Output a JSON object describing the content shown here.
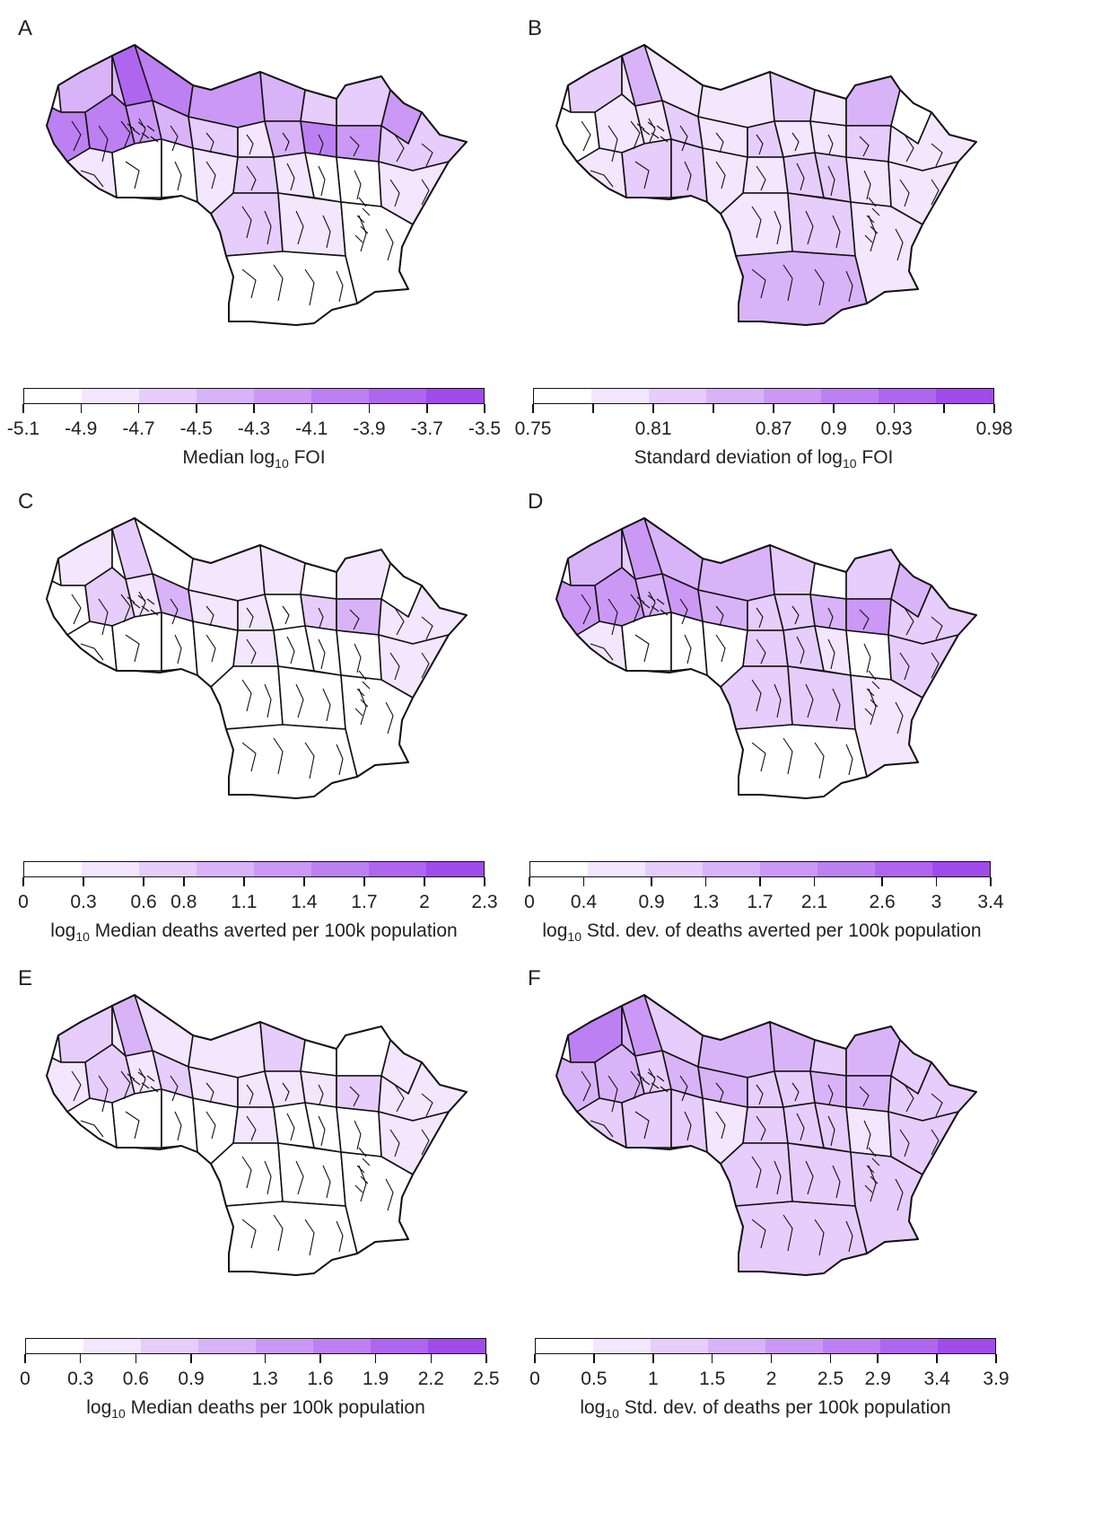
{
  "figure": {
    "palette": [
      "#ffffff",
      "#f3e6fd",
      "#e6cdfb",
      "#d9b3f8",
      "#cb99f5",
      "#bd80f2",
      "#af66ef",
      "#a04bec"
    ],
    "panels": [
      {
        "letter": "A",
        "legend": {
          "title_pre": "Median log",
          "title_sub": "10",
          "title_post": " FOI",
          "tick_labels": [
            "-5.1",
            "-4.9",
            "-4.7",
            "-4.5",
            "-4.3",
            "-4.1",
            "-3.9",
            "-3.7",
            "-3.5"
          ],
          "tick_values": [
            -5.1,
            -4.9,
            -4.7,
            -4.5,
            -4.3,
            -4.1,
            -3.9,
            -3.7,
            -3.5
          ],
          "bin_values": [
            -5.1,
            -4.9,
            -4.7,
            -4.5,
            -4.3,
            -4.1,
            -3.9,
            -3.7,
            -3.5
          ]
        },
        "region_levels": [
          3,
          3,
          6,
          5,
          4,
          3,
          2,
          2,
          4,
          5,
          5,
          4,
          3,
          2,
          1,
          3,
          5,
          4,
          2,
          1,
          0,
          0,
          1,
          2,
          1,
          0,
          0,
          1,
          2,
          1,
          0,
          0
        ]
      },
      {
        "letter": "B",
        "legend": {
          "title_pre": "Standard deviation of log",
          "title_sub": "10",
          "title_post": " FOI",
          "tick_labels": [
            "0.75",
            "0.81",
            "0.87",
            "0.9",
            "0.93",
            "0.98"
          ],
          "tick_values": [
            0.75,
            0.81,
            0.87,
            0.9,
            0.93,
            0.98
          ],
          "bin_values": [
            0.75,
            0.78,
            0.81,
            0.84,
            0.87,
            0.9,
            0.93,
            0.955,
            0.98
          ]
        },
        "region_levels": [
          2,
          1,
          3,
          1,
          1,
          2,
          1,
          3,
          0,
          0,
          1,
          1,
          2,
          1,
          2,
          1,
          1,
          2,
          1,
          1,
          2,
          2,
          1,
          1,
          2,
          2,
          1,
          1,
          1,
          2,
          1,
          3
        ]
      },
      {
        "letter": "C",
        "legend": {
          "title_pre": "log",
          "title_sub": "10",
          "title_post": " Median deaths averted per 100k population",
          "tick_labels": [
            "0",
            "0.3",
            "0.6",
            "0.8",
            "1.1",
            "1.4",
            "1.7",
            "2",
            "2.3"
          ],
          "tick_values": [
            0,
            0.3,
            0.6,
            0.8,
            1.1,
            1.4,
            1.7,
            2,
            2.3
          ],
          "bin_values": [
            0,
            0.3,
            0.6,
            0.8,
            1.1,
            1.4,
            1.7,
            2,
            2.3
          ]
        },
        "region_levels": [
          1,
          0,
          2,
          0,
          1,
          1,
          0,
          1,
          0,
          0,
          2,
          1,
          3,
          1,
          1,
          0,
          2,
          3,
          1,
          0,
          0,
          0,
          0,
          1,
          0,
          0,
          0,
          1,
          0,
          0,
          0,
          0
        ]
      },
      {
        "letter": "D",
        "legend": {
          "title_pre": "log",
          "title_sub": "10",
          "title_post": " Std. dev. of deaths averted per 100k population",
          "tick_labels": [
            "0",
            "0.4",
            "0.9",
            "1.3",
            "1.7",
            "2.1",
            "2.6",
            "3",
            "3.4"
          ],
          "tick_values": [
            0,
            0.4,
            0.9,
            1.3,
            1.7,
            2.1,
            2.6,
            3,
            3.4
          ],
          "bin_values": [
            0,
            0.4,
            0.9,
            1.3,
            1.7,
            2.1,
            2.6,
            3,
            3.4
          ]
        },
        "region_levels": [
          3,
          2,
          4,
          3,
          3,
          2,
          0,
          2,
          3,
          4,
          4,
          3,
          4,
          3,
          2,
          2,
          3,
          4,
          2,
          1,
          0,
          0,
          0,
          2,
          2,
          1,
          0,
          2,
          2,
          2,
          1,
          0
        ]
      },
      {
        "letter": "E",
        "legend": {
          "title_pre": "log",
          "title_sub": "10",
          "title_post": " Median deaths per 100k population",
          "tick_labels": [
            "0",
            "0.3",
            "0.6",
            "0.9",
            "1.3",
            "1.6",
            "1.9",
            "2.2",
            "2.5"
          ],
          "tick_values": [
            0,
            0.3,
            0.6,
            0.9,
            1.3,
            1.6,
            1.9,
            2.2,
            2.5
          ],
          "bin_values": [
            0,
            0.3,
            0.6,
            0.9,
            1.3,
            1.6,
            1.9,
            2.2,
            2.5
          ]
        },
        "region_levels": [
          2,
          1,
          3,
          1,
          1,
          2,
          0,
          0,
          1,
          1,
          2,
          1,
          2,
          1,
          1,
          1,
          1,
          2,
          1,
          0,
          0,
          0,
          0,
          1,
          0,
          0,
          0,
          1,
          0,
          0,
          0,
          0
        ]
      },
      {
        "letter": "F",
        "legend": {
          "title_pre": "log",
          "title_sub": "10",
          "title_post": " Std. dev. of deaths per 100k population",
          "tick_labels": [
            "0",
            "0.5",
            "1",
            "1.5",
            "2",
            "2.5",
            "2.9",
            "3.4",
            "3.9"
          ],
          "tick_values": [
            0,
            0.5,
            1,
            1.5,
            2,
            2.5,
            2.9,
            3.4,
            3.9
          ],
          "bin_values": [
            0,
            0.5,
            1,
            1.5,
            2,
            2.5,
            2.9,
            3.4,
            3.9
          ]
        },
        "region_levels": [
          5,
          3,
          4,
          2,
          3,
          3,
          2,
          3,
          2,
          3,
          3,
          2,
          3,
          3,
          2,
          2,
          3,
          3,
          2,
          2,
          2,
          2,
          1,
          2,
          2,
          2,
          1,
          2,
          2,
          2,
          2,
          2
        ]
      }
    ]
  }
}
